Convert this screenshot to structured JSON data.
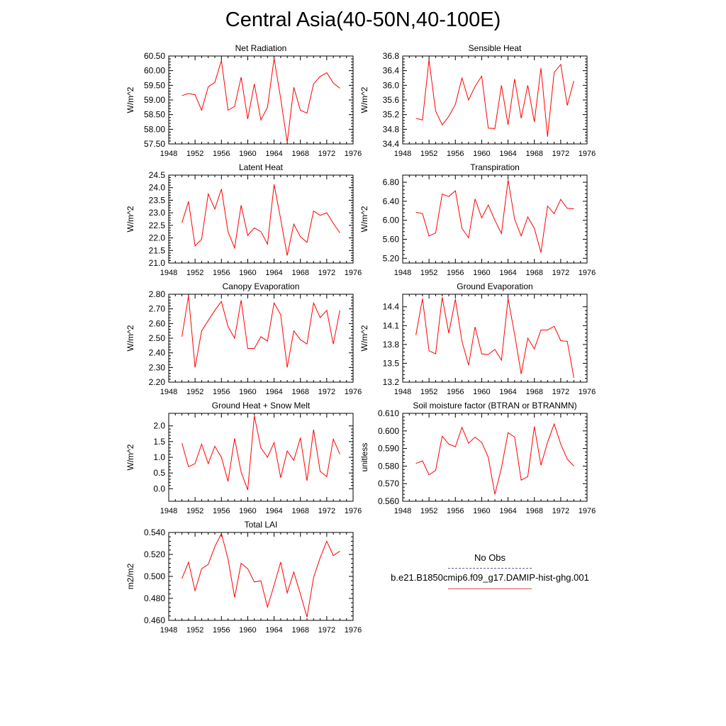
{
  "title": "Central Asia(40-50N,40-100E)",
  "legend": {
    "obs_label": "No Obs",
    "obs_color": "#5a5ab0",
    "model_label": "b.e21.B1850cmip6.f09_g17.DAMIP-hist-ghg.001",
    "model_color": "#e05050"
  },
  "series_color": "#ff0000",
  "chart_data": [
    {
      "type": "line",
      "title": "Net Radiation",
      "ylabel": "W/m^2",
      "xlim": [
        1948,
        1976
      ],
      "xticks": [
        1948,
        1952,
        1956,
        1960,
        1964,
        1968,
        1972,
        1976
      ],
      "ylim": [
        57.5,
        60.5
      ],
      "yticks": [
        "57.50",
        "58.00",
        "58.50",
        "59.00",
        "59.50",
        "60.00",
        "60.50"
      ],
      "x": [
        1950,
        1951,
        1952,
        1953,
        1954,
        1955,
        1956,
        1957,
        1958,
        1959,
        1960,
        1961,
        1962,
        1963,
        1964,
        1965,
        1966,
        1967,
        1968,
        1969,
        1970,
        1971,
        1972,
        1973,
        1974
      ],
      "y": [
        59.15,
        59.22,
        59.18,
        58.65,
        59.45,
        59.6,
        60.35,
        58.65,
        58.78,
        59.78,
        58.35,
        59.55,
        58.32,
        58.75,
        60.42,
        59.05,
        57.55,
        59.43,
        58.65,
        58.55,
        59.55,
        59.8,
        59.93,
        59.58,
        59.4
      ]
    },
    {
      "type": "line",
      "title": "Sensible Heat",
      "ylabel": "W/m^2",
      "xlim": [
        1948,
        1976
      ],
      "xticks": [
        1948,
        1952,
        1956,
        1960,
        1964,
        1968,
        1972,
        1976
      ],
      "ylim": [
        34.4,
        36.8
      ],
      "yticks": [
        "34.4",
        "34.8",
        "35.2",
        "35.6",
        "36.0",
        "36.4",
        "36.8"
      ],
      "x": [
        1950,
        1951,
        1952,
        1953,
        1954,
        1955,
        1956,
        1957,
        1958,
        1959,
        1960,
        1961,
        1962,
        1963,
        1964,
        1965,
        1966,
        1967,
        1968,
        1969,
        1970,
        1971,
        1972,
        1973,
        1974
      ],
      "y": [
        35.1,
        35.05,
        36.7,
        35.3,
        34.92,
        35.15,
        35.48,
        36.2,
        35.6,
        35.97,
        36.25,
        34.83,
        34.82,
        36.0,
        34.92,
        36.17,
        35.1,
        36.0,
        35.0,
        36.47,
        34.6,
        36.35,
        36.57,
        35.45,
        36.12
      ]
    },
    {
      "type": "line",
      "title": "Latent Heat",
      "ylabel": "W/m^2",
      "xlim": [
        1948,
        1976
      ],
      "xticks": [
        1948,
        1952,
        1956,
        1960,
        1964,
        1968,
        1972,
        1976
      ],
      "ylim": [
        21.0,
        24.5
      ],
      "yticks": [
        "21.0",
        "21.5",
        "22.0",
        "22.5",
        "23.0",
        "23.5",
        "24.0",
        "24.5"
      ],
      "x": [
        1950,
        1951,
        1952,
        1953,
        1954,
        1955,
        1956,
        1957,
        1958,
        1959,
        1960,
        1961,
        1962,
        1963,
        1964,
        1965,
        1966,
        1967,
        1968,
        1969,
        1970,
        1971,
        1972,
        1973,
        1974
      ],
      "y": [
        22.6,
        23.45,
        21.68,
        21.95,
        23.75,
        23.15,
        23.95,
        22.25,
        21.6,
        23.3,
        22.1,
        22.4,
        22.25,
        21.75,
        24.13,
        22.75,
        21.3,
        22.55,
        22.05,
        21.82,
        23.07,
        22.9,
        23.0,
        22.58,
        22.2
      ]
    },
    {
      "type": "line",
      "title": "Transpiration",
      "ylabel": "W/m^2",
      "xlim": [
        1948,
        1976
      ],
      "xticks": [
        1948,
        1952,
        1956,
        1960,
        1964,
        1968,
        1972,
        1976
      ],
      "ylim": [
        5.1,
        6.95
      ],
      "yticks": [
        "5.20",
        "5.60",
        "6.00",
        "6.40",
        "6.80"
      ],
      "x": [
        1950,
        1951,
        1952,
        1953,
        1954,
        1955,
        1956,
        1957,
        1958,
        1959,
        1960,
        1961,
        1962,
        1963,
        1964,
        1965,
        1966,
        1967,
        1968,
        1969,
        1970,
        1971,
        1972,
        1973,
        1974
      ],
      "y": [
        6.17,
        6.14,
        5.67,
        5.73,
        6.55,
        6.5,
        6.62,
        5.83,
        5.63,
        6.45,
        6.05,
        6.32,
        6.0,
        5.72,
        6.85,
        6.02,
        5.67,
        6.07,
        5.83,
        5.32,
        6.3,
        6.14,
        6.44,
        6.25,
        6.24
      ]
    },
    {
      "type": "line",
      "title": "Canopy Evaporation",
      "ylabel": "W/m^2",
      "xlim": [
        1948,
        1976
      ],
      "xticks": [
        1948,
        1952,
        1956,
        1960,
        1964,
        1968,
        1972,
        1976
      ],
      "ylim": [
        2.2,
        2.8
      ],
      "yticks": [
        "2.20",
        "2.30",
        "2.40",
        "2.50",
        "2.60",
        "2.70",
        "2.80"
      ],
      "x": [
        1950,
        1951,
        1952,
        1953,
        1954,
        1955,
        1956,
        1957,
        1958,
        1959,
        1960,
        1961,
        1962,
        1963,
        1964,
        1965,
        1966,
        1967,
        1968,
        1969,
        1970,
        1971,
        1972,
        1973,
        1974
      ],
      "y": [
        2.51,
        2.79,
        2.3,
        2.55,
        2.62,
        2.69,
        2.75,
        2.58,
        2.5,
        2.76,
        2.43,
        2.43,
        2.51,
        2.48,
        2.74,
        2.66,
        2.3,
        2.55,
        2.49,
        2.46,
        2.74,
        2.64,
        2.69,
        2.46,
        2.69
      ]
    },
    {
      "type": "line",
      "title": "Ground Evaporation",
      "ylabel": "W/m^2",
      "xlim": [
        1948,
        1976
      ],
      "xticks": [
        1948,
        1952,
        1956,
        1960,
        1964,
        1968,
        1972,
        1976
      ],
      "ylim": [
        13.2,
        14.6
      ],
      "yticks": [
        "13.2",
        "13.5",
        "13.8",
        "14.1",
        "14.4"
      ],
      "x": [
        1950,
        1951,
        1952,
        1953,
        1954,
        1955,
        1956,
        1957,
        1958,
        1959,
        1960,
        1961,
        1962,
        1963,
        1964,
        1965,
        1966,
        1967,
        1968,
        1969,
        1970,
        1971,
        1972,
        1973,
        1974
      ],
      "y": [
        13.95,
        14.53,
        13.7,
        13.65,
        14.55,
        13.98,
        14.52,
        13.85,
        13.47,
        14.08,
        13.65,
        13.64,
        13.72,
        13.55,
        14.53,
        13.96,
        13.33,
        13.9,
        13.73,
        14.03,
        14.03,
        14.09,
        13.86,
        13.85,
        13.27
      ]
    },
    {
      "type": "line",
      "title": "Ground Heat + Snow Melt",
      "ylabel": "W/m^2",
      "xlim": [
        1948,
        1976
      ],
      "xticks": [
        1948,
        1952,
        1956,
        1960,
        1964,
        1968,
        1972,
        1976
      ],
      "ylim": [
        -0.4,
        2.4
      ],
      "yticks": [
        "0.0",
        "0.5",
        "1.0",
        "1.5",
        "2.0"
      ],
      "ytick_values": [
        0.0,
        0.5,
        1.0,
        1.5,
        2.0
      ],
      "x": [
        1950,
        1951,
        1952,
        1953,
        1954,
        1955,
        1956,
        1957,
        1958,
        1959,
        1960,
        1961,
        1962,
        1963,
        1964,
        1965,
        1966,
        1967,
        1968,
        1969,
        1970,
        1971,
        1972,
        1973,
        1974
      ],
      "y": [
        1.45,
        0.7,
        0.8,
        1.42,
        0.8,
        1.35,
        1.0,
        0.23,
        1.6,
        0.53,
        -0.04,
        2.32,
        1.3,
        1.0,
        1.47,
        0.35,
        1.2,
        0.9,
        1.62,
        0.25,
        1.88,
        0.55,
        0.38,
        1.58,
        1.1
      ]
    },
    {
      "type": "line",
      "title": "Soil moisture factor (BTRAN or BTRANMN)",
      "ylabel": "unitless",
      "xlim": [
        1948,
        1976
      ],
      "xticks": [
        1948,
        1952,
        1956,
        1960,
        1964,
        1968,
        1972,
        1976
      ],
      "ylim": [
        0.56,
        0.61
      ],
      "yticks": [
        "0.560",
        "0.570",
        "0.580",
        "0.590",
        "0.600",
        "0.610"
      ],
      "x": [
        1950,
        1951,
        1952,
        1953,
        1954,
        1955,
        1956,
        1957,
        1958,
        1959,
        1960,
        1961,
        1962,
        1963,
        1964,
        1965,
        1966,
        1967,
        1968,
        1969,
        1970,
        1971,
        1972,
        1973,
        1974
      ],
      "y": [
        0.5815,
        0.583,
        0.575,
        0.5775,
        0.597,
        0.5925,
        0.591,
        0.602,
        0.593,
        0.5965,
        0.5935,
        0.585,
        0.564,
        0.579,
        0.599,
        0.5965,
        0.572,
        0.574,
        0.6025,
        0.5805,
        0.5935,
        0.604,
        0.5925,
        0.584,
        0.58
      ]
    },
    {
      "type": "line",
      "title": "Total LAI",
      "ylabel": "m2/m2",
      "xlim": [
        1948,
        1976
      ],
      "xticks": [
        1948,
        1952,
        1956,
        1960,
        1964,
        1968,
        1972,
        1976
      ],
      "ylim": [
        0.46,
        0.54
      ],
      "yticks": [
        "0.460",
        "0.480",
        "0.500",
        "0.520",
        "0.540"
      ],
      "x": [
        1950,
        1951,
        1952,
        1953,
        1954,
        1955,
        1956,
        1957,
        1958,
        1959,
        1960,
        1961,
        1962,
        1963,
        1964,
        1965,
        1966,
        1967,
        1968,
        1969,
        1970,
        1971,
        1972,
        1973,
        1974
      ],
      "y": [
        0.498,
        0.513,
        0.487,
        0.507,
        0.511,
        0.527,
        0.539,
        0.516,
        0.481,
        0.512,
        0.507,
        0.495,
        0.496,
        0.472,
        0.492,
        0.513,
        0.485,
        0.504,
        0.484,
        0.463,
        0.499,
        0.517,
        0.532,
        0.519,
        0.523
      ]
    }
  ]
}
